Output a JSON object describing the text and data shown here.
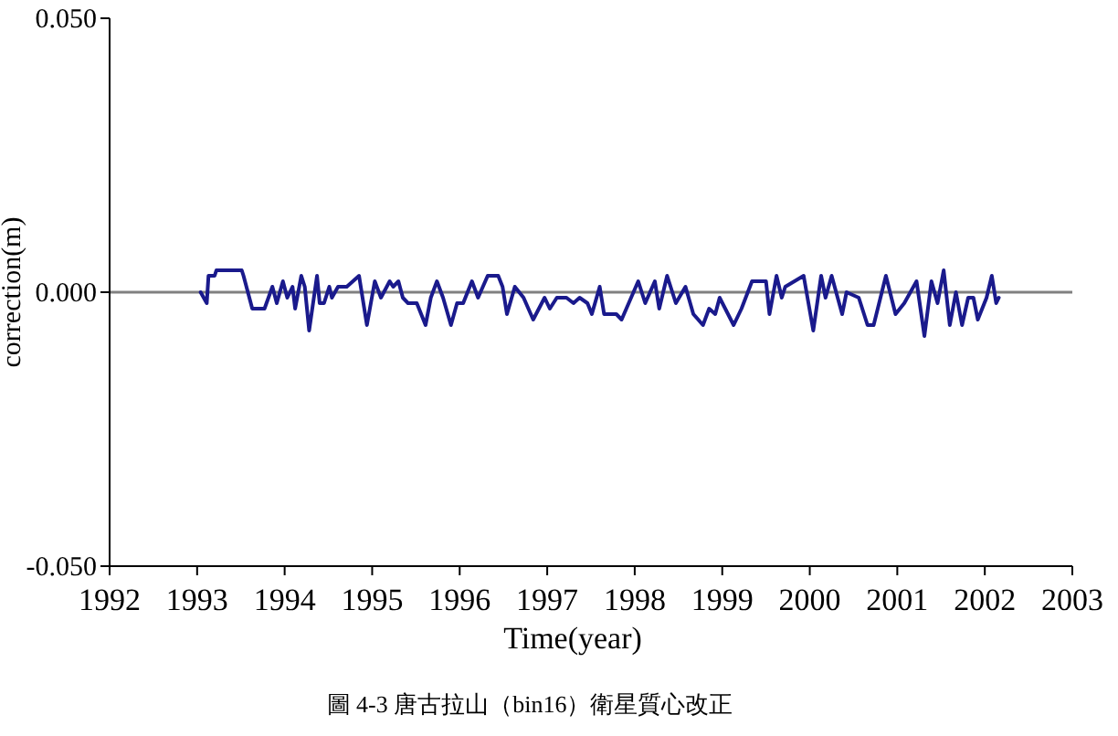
{
  "chart_data": {
    "type": "line",
    "title": "圖 4-3 唐古拉山（bin16）衛星質心改正",
    "xlabel": "Time(year)",
    "ylabel": "correction(m)",
    "xlim": [
      1992,
      2003
    ],
    "xticks": [
      1992,
      1993,
      1994,
      1995,
      1996,
      1997,
      1998,
      1999,
      2000,
      2001,
      2002,
      2003
    ],
    "ylim": [
      -0.05,
      0.05
    ],
    "yticks": [
      {
        "value": -0.05,
        "label": "-0.050"
      },
      {
        "value": 0,
        "label": "0.000"
      },
      {
        "value": 0.05,
        "label": "0.050"
      }
    ],
    "marker": "none",
    "line_style": "solid",
    "ref_lines": [
      {
        "axis": "y",
        "value": 0,
        "label": null,
        "color": "#808080"
      }
    ],
    "series": [
      {
        "color": "#1a1a8c",
        "x": [
          1993.04,
          1993.11,
          1993.13,
          1993.2,
          1993.22,
          1993.51,
          1993.53,
          1993.63,
          1993.77,
          1993.86,
          1993.91,
          1993.98,
          1994.03,
          1994.09,
          1994.12,
          1994.19,
          1994.23,
          1994.28,
          1994.37,
          1994.4,
          1994.45,
          1994.51,
          1994.54,
          1994.61,
          1994.71,
          1994.78,
          1994.85,
          1994.94,
          1995.03,
          1995.1,
          1995.2,
          1995.24,
          1995.3,
          1995.35,
          1995.41,
          1995.51,
          1995.61,
          1995.67,
          1995.74,
          1995.81,
          1995.9,
          1995.97,
          1996.04,
          1996.14,
          1996.21,
          1996.32,
          1996.44,
          1996.49,
          1996.54,
          1996.63,
          1996.73,
          1996.84,
          1996.97,
          1997.03,
          1997.11,
          1997.22,
          1997.3,
          1997.37,
          1997.46,
          1997.51,
          1997.6,
          1997.65,
          1997.79,
          1997.85,
          1998.04,
          1998.12,
          1998.23,
          1998.28,
          1998.37,
          1998.47,
          1998.58,
          1998.67,
          1998.78,
          1998.85,
          1998.92,
          1998.97,
          1999.13,
          1999.22,
          1999.34,
          1999.5,
          1999.54,
          1999.62,
          1999.68,
          1999.72,
          1999.93,
          2000.04,
          2000.13,
          2000.18,
          2000.25,
          2000.37,
          2000.42,
          2000.56,
          2000.66,
          2000.73,
          2000.87,
          2000.98,
          2001.08,
          2001.22,
          2001.31,
          2001.39,
          2001.46,
          2001.53,
          2001.6,
          2001.67,
          2001.74,
          2001.81,
          2001.87,
          2001.92,
          2002.02,
          2002.08,
          2002.13,
          2002.16
        ],
        "values": [
          0,
          -0.002,
          0.003,
          0.003,
          0.004,
          0.004,
          0.003,
          -0.003,
          -0.003,
          0.001,
          -0.002,
          0.002,
          -0.001,
          0.001,
          -0.003,
          0.003,
          0.001,
          -0.007,
          0.003,
          -0.002,
          -0.002,
          0.001,
          -0.001,
          0.001,
          0.001,
          0.002,
          0.003,
          -0.006,
          0.002,
          -0.001,
          0.002,
          0.001,
          0.002,
          -0.001,
          -0.002,
          -0.002,
          -0.006,
          -0.001,
          0.002,
          -0.001,
          -0.006,
          -0.002,
          -0.002,
          0.002,
          -0.001,
          0.003,
          0.003,
          0.001,
          -0.004,
          0.001,
          -0.001,
          -0.005,
          -0.001,
          -0.003,
          -0.001,
          -0.001,
          -0.002,
          -0.001,
          -0.002,
          -0.004,
          0.001,
          -0.004,
          -0.004,
          -0.005,
          0.002,
          -0.002,
          0.002,
          -0.003,
          0.003,
          -0.002,
          0.001,
          -0.004,
          -0.006,
          -0.003,
          -0.004,
          -0.001,
          -0.006,
          -0.003,
          0.002,
          0.002,
          -0.004,
          0.003,
          -0.001,
          0.001,
          0.003,
          -0.007,
          0.003,
          -0.001,
          0.003,
          -0.004,
          0,
          -0.001,
          -0.006,
          -0.006,
          0.003,
          -0.004,
          -0.002,
          0.002,
          -0.008,
          0.002,
          -0.002,
          0.004,
          -0.006,
          0,
          -0.006,
          -0.001,
          -0.001,
          -0.005,
          -0.001,
          0.003,
          -0.002,
          -0.001
        ]
      }
    ]
  }
}
